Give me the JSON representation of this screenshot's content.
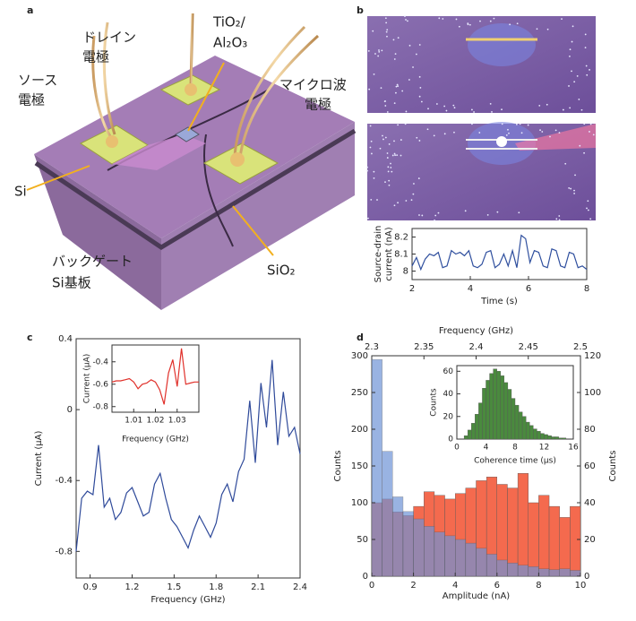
{
  "panel_labels": [
    "a",
    "b",
    "c",
    "d"
  ],
  "diagram": {
    "source_electrode": [
      "ソース",
      "電極"
    ],
    "drain_electrode": [
      "ドレイン",
      "電極"
    ],
    "dielectric": [
      "TiO₂/",
      "Al₂O₃"
    ],
    "microwave_electrode": [
      "マイクロ波",
      "電極"
    ],
    "si": "Si",
    "back_gate": [
      "バックゲート",
      "Si基板"
    ],
    "sio2": "SiO₂"
  },
  "chart_data": [
    {
      "type": "line",
      "xlabel": "Time (s)",
      "ylabel": [
        "Source-drain",
        "current (nA)"
      ],
      "color": "#2f4f9e",
      "x": [
        2,
        2.15,
        2.3,
        2.45,
        2.6,
        2.75,
        2.9,
        3.05,
        3.2,
        3.35,
        3.5,
        3.65,
        3.8,
        3.95,
        4.1,
        4.25,
        4.4,
        4.55,
        4.7,
        4.85,
        5,
        5.15,
        5.3,
        5.45,
        5.6,
        5.75,
        5.9,
        6.05,
        6.2,
        6.35,
        6.5,
        6.65,
        6.8,
        6.95,
        7.1,
        7.25,
        7.4,
        7.55,
        7.7,
        7.85,
        8
      ],
      "values": [
        8.03,
        8.08,
        8.01,
        8.07,
        8.1,
        8.09,
        8.11,
        8.02,
        8.03,
        8.12,
        8.1,
        8.11,
        8.09,
        8.12,
        8.03,
        8.02,
        8.04,
        8.11,
        8.12,
        8.02,
        8.04,
        8.1,
        8.03,
        8.12,
        8.02,
        8.21,
        8.19,
        8.05,
        8.12,
        8.11,
        8.03,
        8.02,
        8.13,
        8.12,
        8.03,
        8.02,
        8.11,
        8.1,
        8.02,
        8.03,
        8.01
      ],
      "xlim": [
        2,
        8
      ],
      "xticks": [
        2,
        4,
        6,
        8
      ],
      "ylim": [
        7.95,
        8.25
      ],
      "yticks": [
        8,
        8.1,
        8.2
      ]
    },
    {
      "type": "line",
      "xlabel": "Frequency (GHz)",
      "ylabel": "Current (μA)",
      "color": "#2f4a9a",
      "x": [
        0.8,
        0.84,
        0.88,
        0.92,
        0.96,
        1,
        1.04,
        1.08,
        1.12,
        1.16,
        1.2,
        1.24,
        1.28,
        1.32,
        1.36,
        1.4,
        1.44,
        1.48,
        1.52,
        1.56,
        1.6,
        1.64,
        1.68,
        1.72,
        1.76,
        1.8,
        1.84,
        1.88,
        1.92,
        1.96,
        2,
        2.04,
        2.08,
        2.12,
        2.16,
        2.2,
        2.24,
        2.28,
        2.32,
        2.36,
        2.4
      ],
      "values": [
        -0.8,
        -0.5,
        -0.46,
        -0.48,
        -0.2,
        -0.55,
        -0.5,
        -0.62,
        -0.58,
        -0.47,
        -0.44,
        -0.52,
        -0.6,
        -0.58,
        -0.42,
        -0.36,
        -0.5,
        -0.62,
        -0.66,
        -0.72,
        -0.78,
        -0.68,
        -0.6,
        -0.66,
        -0.72,
        -0.64,
        -0.48,
        -0.42,
        -0.52,
        -0.35,
        -0.28,
        0.05,
        -0.3,
        0.15,
        -0.1,
        0.28,
        -0.2,
        0.1,
        -0.15,
        -0.1,
        -0.25
      ],
      "xlim": [
        0.8,
        2.4
      ],
      "xticks": [
        0.9,
        1.2,
        1.5,
        1.8,
        2.1,
        2.4
      ],
      "ylim": [
        -0.95,
        0.4
      ],
      "yticks": [
        0.4,
        0,
        -0.4,
        -0.8
      ]
    },
    {
      "type": "line",
      "xlabel": "Frequency (GHz)",
      "ylabel": "Current (μA)",
      "color": "#e0302a",
      "x": [
        1,
        1.002,
        1.004,
        1.006,
        1.008,
        1.01,
        1.012,
        1.014,
        1.016,
        1.018,
        1.02,
        1.022,
        1.024,
        1.026,
        1.028,
        1.03,
        1.032,
        1.034,
        1.036,
        1.038,
        1.04
      ],
      "values": [
        -0.58,
        -0.57,
        -0.57,
        -0.56,
        -0.55,
        -0.58,
        -0.64,
        -0.6,
        -0.59,
        -0.56,
        -0.58,
        -0.65,
        -0.78,
        -0.5,
        -0.38,
        -0.62,
        -0.28,
        -0.6,
        -0.59,
        -0.58,
        -0.58
      ],
      "xlim": [
        1,
        1.04
      ],
      "xticks": [
        1.01,
        1.02,
        1.03
      ],
      "ylim": [
        -0.85,
        -0.25
      ],
      "yticks": [
        -0.4,
        -0.6,
        -0.8
      ]
    },
    {
      "type": "histogram",
      "xlabel": "Amplitude (nA)",
      "x2label": "Frequency (GHz)",
      "ylabel": "Counts",
      "y2label": "Counts",
      "xlim": [
        0,
        10
      ],
      "xticks": [
        0,
        2,
        4,
        6,
        8,
        10
      ],
      "x2lim": [
        2.3,
        2.5
      ],
      "x2ticks": [
        2.3,
        2.35,
        2.4,
        2.45,
        2.5
      ],
      "ylim": [
        0,
        300
      ],
      "yticks": [
        0,
        50,
        100,
        150,
        200,
        250,
        300
      ],
      "y2lim": [
        0,
        120
      ],
      "y2ticks": [
        0,
        20,
        40,
        60,
        80,
        100,
        120
      ],
      "xcolor": "#4a72c4",
      "x2color": "#e0402a",
      "series": [
        {
          "color": "#f46a4e",
          "axis": "y2",
          "xaxis": "x2",
          "bins": [
            2.3,
            2.31,
            2.32,
            2.33,
            2.34,
            2.35,
            2.36,
            2.37,
            2.38,
            2.39,
            2.4,
            2.41,
            2.42,
            2.43,
            2.44,
            2.45,
            2.46,
            2.47,
            2.48,
            2.49,
            2.5
          ],
          "values": [
            40,
            42,
            35,
            33,
            38,
            46,
            44,
            42,
            45,
            48,
            52,
            54,
            50,
            48,
            56,
            40,
            44,
            38,
            32,
            38
          ]
        },
        {
          "color": "#6f93d6",
          "bins": [
            0,
            0.5,
            1,
            1.5,
            2,
            2.5,
            3,
            3.5,
            4,
            4.5,
            5,
            5.5,
            6,
            6.5,
            7,
            7.5,
            8,
            8.5,
            9,
            9.5,
            10
          ],
          "values": [
            295,
            170,
            108,
            88,
            78,
            68,
            60,
            55,
            50,
            45,
            38,
            30,
            22,
            18,
            15,
            13,
            10,
            9,
            10,
            8
          ]
        }
      ]
    },
    {
      "type": "histogram",
      "xlabel": "Coherence time (μs)",
      "ylabel": "Counts",
      "color": "#4a8a3e",
      "labelcolor": "#2e7d32",
      "bins": [
        1,
        1.5,
        2,
        2.5,
        3,
        3.5,
        4,
        4.5,
        5,
        5.5,
        6,
        6.5,
        7,
        7.5,
        8,
        8.5,
        9,
        9.5,
        10,
        10.5,
        11,
        11.5,
        12,
        12.5,
        13,
        13.5,
        14,
        14.5,
        15
      ],
      "values": [
        3,
        8,
        14,
        22,
        32,
        45,
        52,
        58,
        62,
        60,
        56,
        50,
        44,
        36,
        30,
        24,
        20,
        15,
        12,
        9,
        7,
        5,
        4,
        3,
        2,
        2,
        1,
        1
      ],
      "xlim": [
        0,
        16
      ],
      "xticks": [
        0,
        4,
        8,
        12,
        16
      ],
      "ylim": [
        0,
        65
      ],
      "yticks": [
        0,
        20,
        40,
        60
      ]
    }
  ]
}
